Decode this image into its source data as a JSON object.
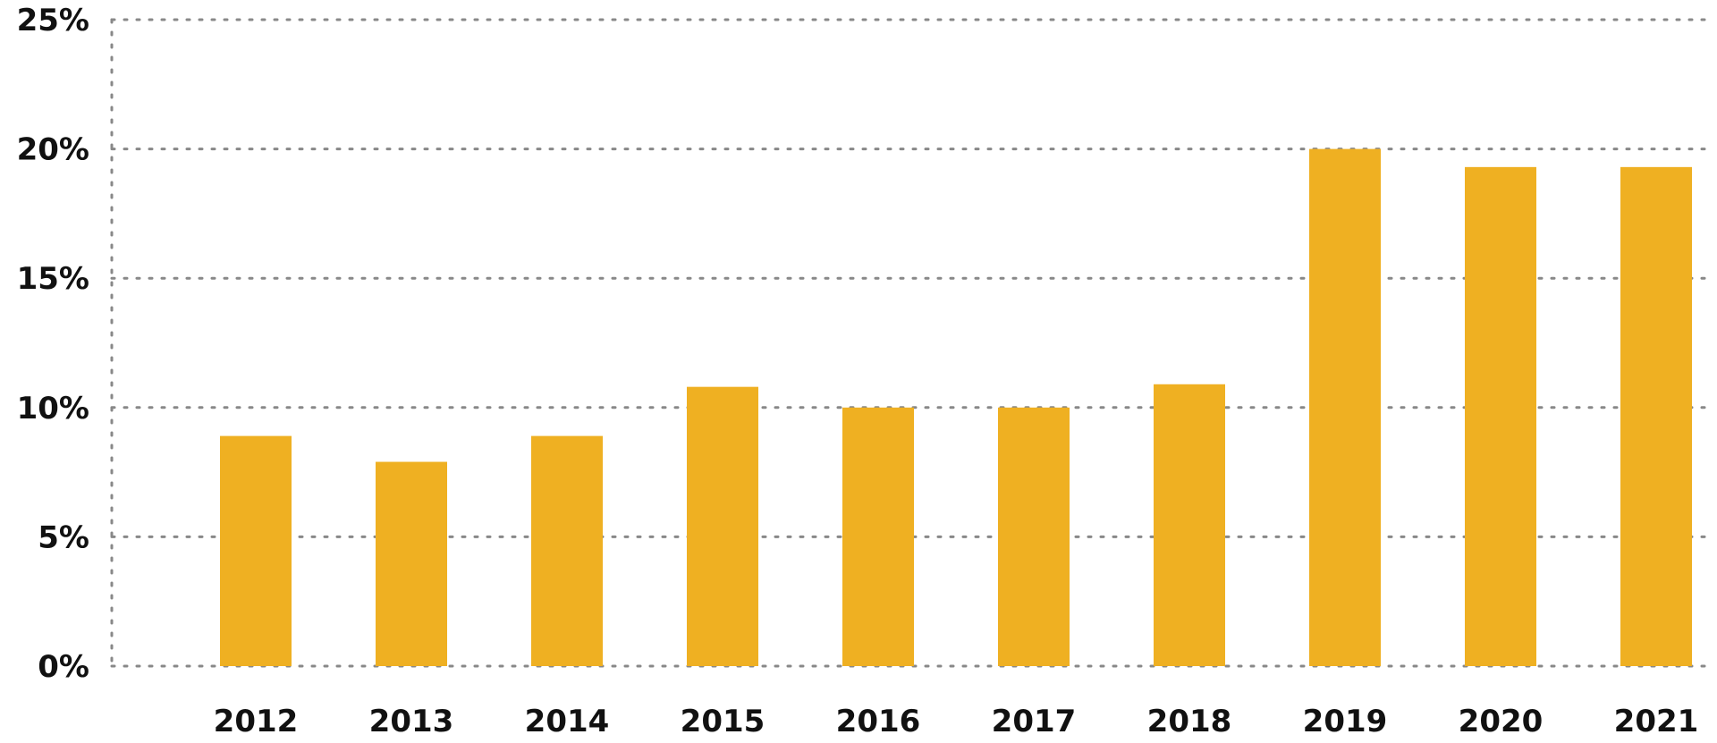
{
  "chart_data": {
    "type": "bar",
    "title": "",
    "xlabel": "",
    "ylabel": "",
    "categories": [
      "2012",
      "2013",
      "2014",
      "2015",
      "2016",
      "2017",
      "2018",
      "2019",
      "2020",
      "2021"
    ],
    "values": [
      8.9,
      7.9,
      8.9,
      10.8,
      10.0,
      10.0,
      10.9,
      20.0,
      19.3,
      19.3
    ],
    "ylim": [
      0,
      25
    ],
    "y_ticks": [
      0,
      5,
      10,
      15,
      20,
      25
    ],
    "y_tick_labels": [
      "0%",
      "5%",
      "10%",
      "15%",
      "20%",
      "25%"
    ],
    "grid": "horizontal dotted",
    "legend": "none",
    "colors": {
      "bar": "#EFB022",
      "grid": "#888888",
      "text": "#111111"
    }
  }
}
